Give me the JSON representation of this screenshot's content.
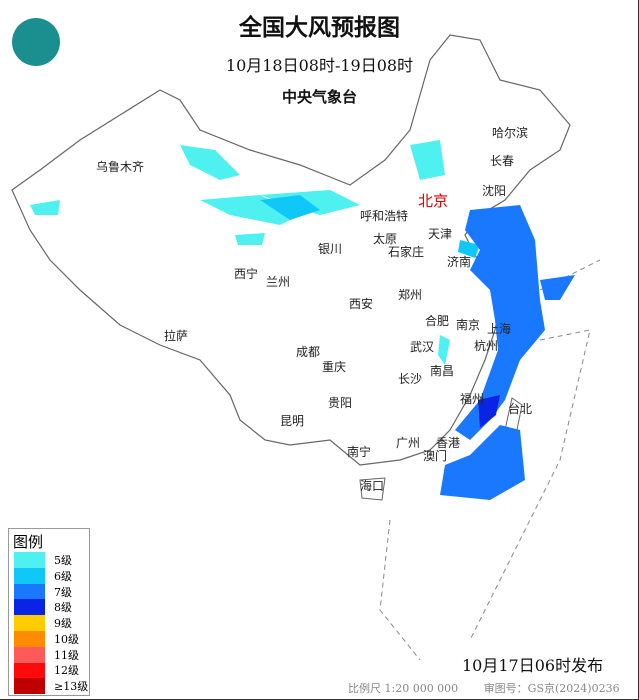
{
  "header": {
    "title": "全国大风预报图",
    "period": "10月18日08时-19日08时",
    "agency": "中央气象台",
    "logo_icon": "cma-logo-icon"
  },
  "cities": {
    "capital": "北京",
    "list": [
      "乌鲁木齐",
      "哈尔滨",
      "长春",
      "沈阳",
      "呼和浩特",
      "天津",
      "太原",
      "石家庄",
      "银川",
      "济南",
      "西宁",
      "兰州",
      "郑州",
      "西安",
      "合肥",
      "南京",
      "上海",
      "拉萨",
      "成都",
      "武汉",
      "杭州",
      "重庆",
      "南昌",
      "长沙",
      "福州",
      "台北",
      "贵阳",
      "昆明",
      "广州",
      "香港",
      "澳门",
      "南宁",
      "海口"
    ]
  },
  "legend": {
    "title": "图例",
    "items": [
      {
        "label": "5级",
        "color": "#4ff0f0"
      },
      {
        "label": "6级",
        "color": "#10c8f8"
      },
      {
        "label": "7级",
        "color": "#1a78ff"
      },
      {
        "label": "8级",
        "color": "#0a24e6"
      },
      {
        "label": "9级",
        "color": "#ffcc00"
      },
      {
        "label": "10级",
        "color": "#ff8c00"
      },
      {
        "label": "11级",
        "color": "#ff5a5a"
      },
      {
        "label": "12级",
        "color": "#ff0a0a"
      },
      {
        "label": "≥13级",
        "color": "#c00000"
      }
    ]
  },
  "footer": {
    "issued": "10月17日06时发布",
    "scale": "比例尺 1:20 000 000",
    "approval": "审图号：GS京(2024)0236号"
  }
}
